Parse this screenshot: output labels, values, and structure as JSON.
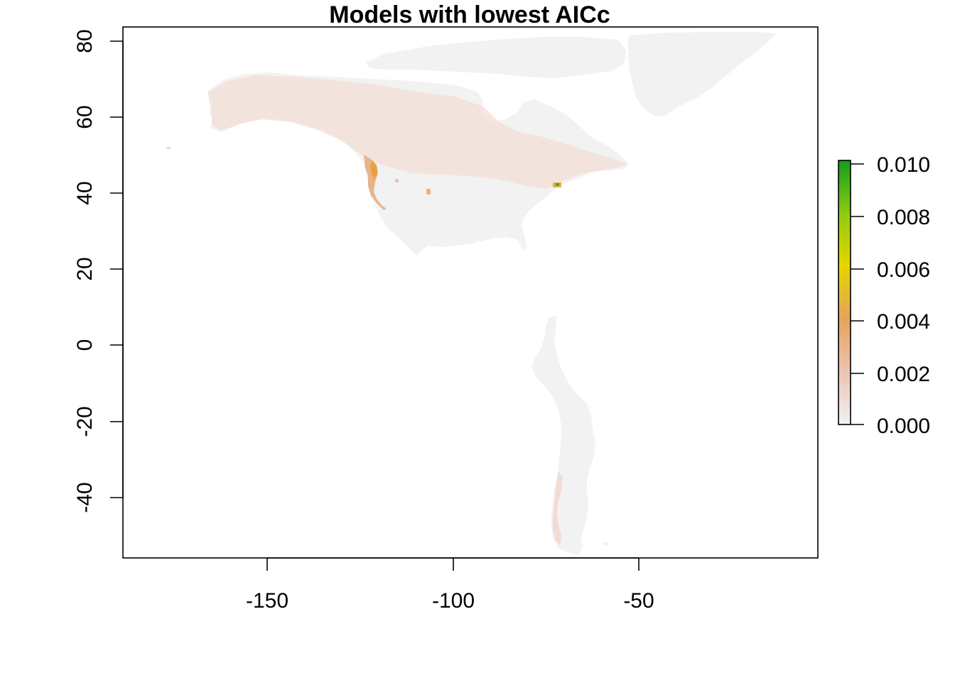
{
  "title": "Models with lowest AICc",
  "map": {
    "x_ticks": [
      "-150",
      "-100",
      "-50"
    ],
    "y_ticks": [
      "80",
      "60",
      "40",
      "20",
      "0",
      "-20",
      "-40"
    ],
    "xlim": [
      -190,
      -3
    ],
    "ylim": [
      -56,
      84
    ],
    "projection": "longitude / latitude",
    "land_fill": "#f2f2f2",
    "background": "#ffffff",
    "highlight_colors": [
      "#f2d8cf",
      "#eca36b",
      "#e6ad3a",
      "#00a800"
    ],
    "regions_shown": [
      "North America",
      "Greenland",
      "western South America (Andes)"
    ]
  },
  "legend": {
    "type": "continuous color bar",
    "placement": "right",
    "labels": [
      "0.010",
      "0.008",
      "0.006",
      "0.004",
      "0.002",
      "0.000"
    ],
    "range": [
      0.0,
      0.01
    ],
    "colors": [
      "#f2f2f2",
      "#ebb38f",
      "#e59f3a",
      "#e4d600",
      "#9fcd13",
      "#16a01b"
    ]
  }
}
